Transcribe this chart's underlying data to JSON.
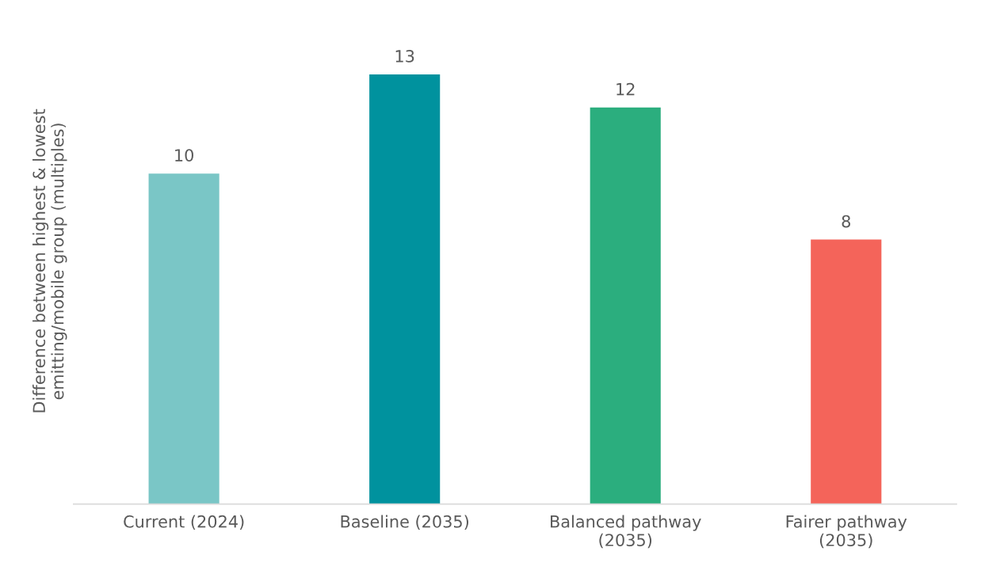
{
  "chart_data": {
    "type": "bar",
    "ylabel": "Difference between highest & lowest\nemitting/mobile group (multiples)",
    "categories": [
      "Current (2024)",
      "Baseline (2035)",
      "Balanced pathway\n(2035)",
      "Fairer pathway\n(2035)"
    ],
    "values": [
      10,
      13,
      12,
      8
    ],
    "colors": [
      "#7ac6c6",
      "#00929e",
      "#2bae7e",
      "#f4645a"
    ],
    "data_labels": true,
    "tick_labels": "x"
  }
}
